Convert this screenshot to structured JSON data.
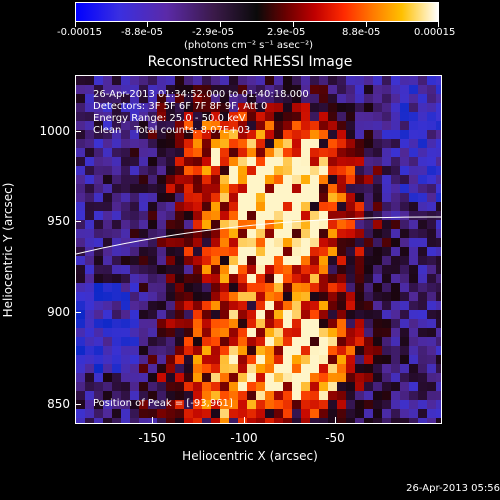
{
  "colorbar": {
    "tick_labels": [
      "-0.00015",
      "-8.8e-05",
      "-2.9e-05",
      "2.9e-05",
      "8.8e-05",
      "0.00015"
    ],
    "units": "(photons cm⁻² s⁻¹ asec⁻²)"
  },
  "title": "Reconstructed RHESSI Image",
  "info": {
    "time_range": "26-Apr-2013 01:34:52.000 to 01:40:18.000",
    "detectors": "Detectors: 3F 5F 6F 7F 8F 9F, Att 0",
    "energy": "Energy Range: 25.0 - 50.0 keV",
    "clean": "Clean    Total counts: 8.07E+03",
    "peak": "Position of Peak = [-93,961]"
  },
  "axes": {
    "xlabel": "Heliocentric X (arcsec)",
    "ylabel": "Heliocentric Y (arcsec)",
    "xticks": [
      "-150",
      "-100",
      "-50"
    ],
    "yticks": [
      "1000",
      "950",
      "900",
      "850"
    ]
  },
  "timestamp": "26-Apr-2013 05:56",
  "colors": {
    "background": "#000000",
    "axis": "#ffffff"
  }
}
